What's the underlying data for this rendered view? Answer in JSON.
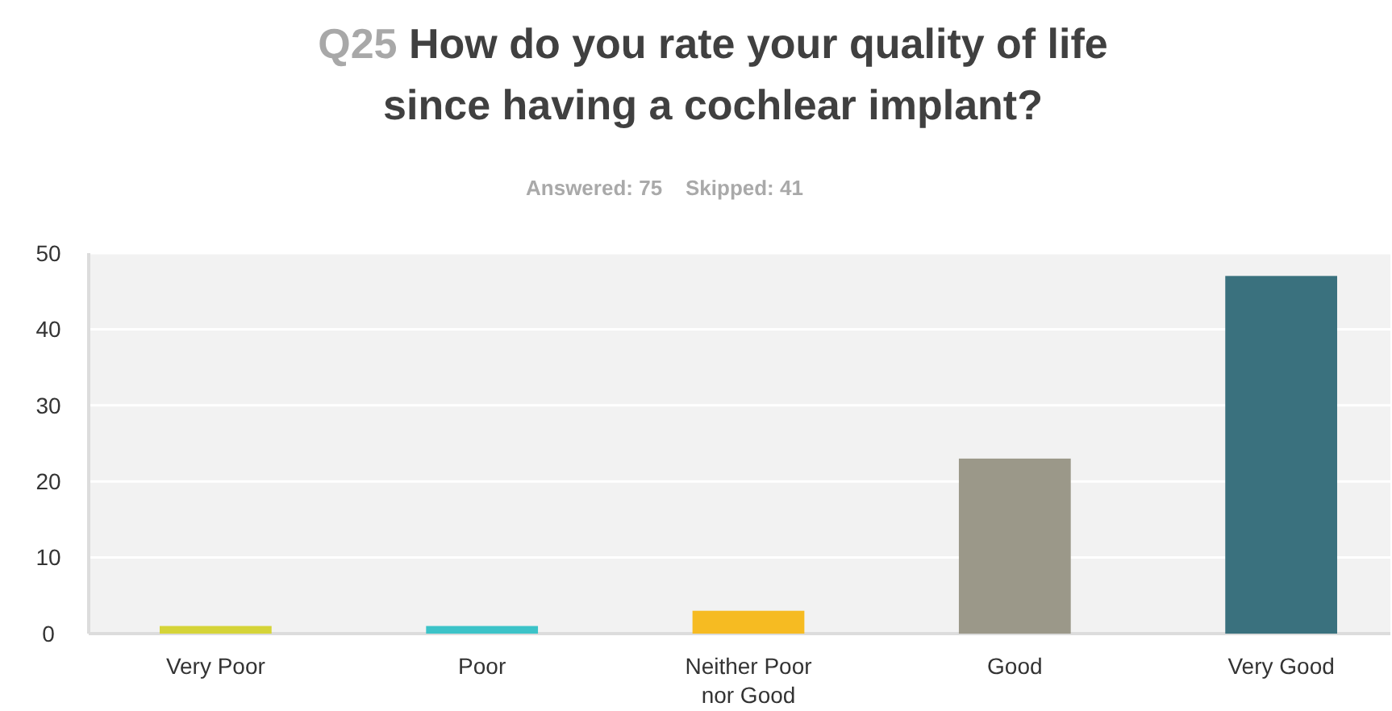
{
  "chart_data": {
    "type": "bar",
    "title": "Q25 How do you rate your quality of life since having a cochlear implant?",
    "subtitle": "Answered: 75    Skipped: 41",
    "categories": [
      "Very Poor",
      "Poor",
      "Neither Poor nor Good",
      "Good",
      "Very Good"
    ],
    "values": [
      1,
      1,
      3,
      23,
      47
    ],
    "colors": [
      "#d5d438",
      "#3cc3c8",
      "#f6bb22",
      "#9b9889",
      "#3a717e"
    ],
    "ylim": [
      0,
      50
    ],
    "yticks": [
      0,
      10,
      20,
      30,
      40,
      50
    ],
    "grid": "y"
  }
}
